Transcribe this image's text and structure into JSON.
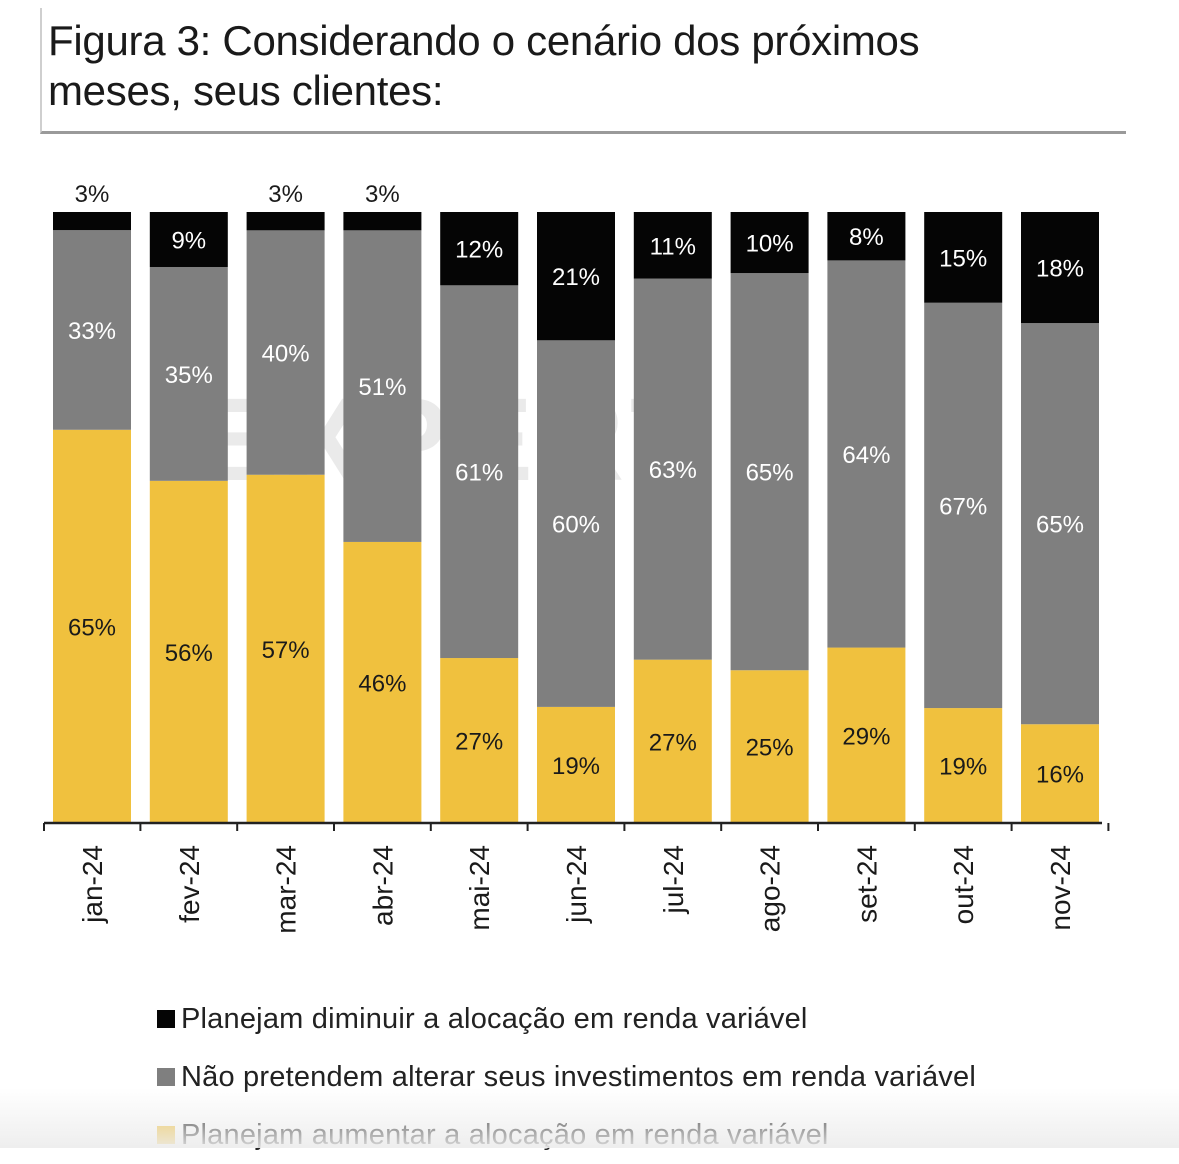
{
  "title": "Figura 3: Considerando o cenário dos próximos meses, seus clientes:",
  "watermark": "EXPERT",
  "colors": {
    "diminuir": "#050505",
    "nao_alterar": "#7f7f7f",
    "aumentar": "#f0c13e",
    "label_dark": "#1a1a1a",
    "label_light": "#ffffff"
  },
  "chart_data": {
    "type": "bar",
    "stacked": true,
    "categories": [
      "jan-24",
      "fev-24",
      "mar-24",
      "abr-24",
      "mai-24",
      "jun-24",
      "jul-24",
      "ago-24",
      "set-24",
      "out-24",
      "nov-24"
    ],
    "series": [
      {
        "name": "Planejam aumentar a alocação em renda variável",
        "key": "aumentar",
        "values": [
          65,
          56,
          57,
          46,
          27,
          19,
          27,
          25,
          29,
          19,
          16
        ]
      },
      {
        "name": "Não pretendem alterar seus investimentos em renda variável",
        "key": "nao_alterar",
        "values": [
          33,
          35,
          40,
          51,
          61,
          60,
          63,
          65,
          64,
          67,
          65
        ]
      },
      {
        "name": "Planejam diminuir a alocação em renda variável",
        "key": "diminuir",
        "values": [
          3,
          9,
          3,
          3,
          12,
          21,
          11,
          10,
          8,
          15,
          18
        ]
      }
    ],
    "value_suffix": "%",
    "legend_position": "bottom-left",
    "x_tick_rotation": -90,
    "grid": false
  },
  "legend": [
    {
      "label": "Planejam diminuir a alocação em renda variável",
      "key": "diminuir"
    },
    {
      "label": "Não pretendem alterar seus investimentos em renda variável",
      "key": "nao_alterar"
    },
    {
      "label": "Planejam aumentar a alocação em renda variável",
      "key": "aumentar"
    }
  ]
}
